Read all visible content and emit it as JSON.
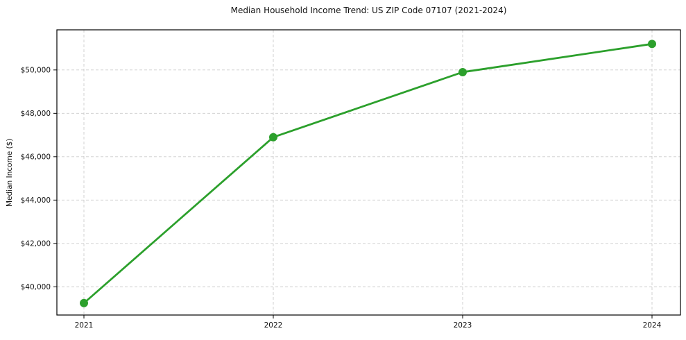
{
  "chart": {
    "title": "Median Household Income Trend: US ZIP Code 07107 (2021-2024)",
    "ylabel": "Median Income ($)"
  },
  "chart_data": {
    "type": "line",
    "title": "Median Household Income Trend: US ZIP Code 07107 (2021-2024)",
    "xlabel": "",
    "ylabel": "Median Income ($)",
    "x": [
      2021,
      2022,
      2023,
      2024
    ],
    "x_tick_labels": [
      "2021",
      "2022",
      "2023",
      "2024"
    ],
    "series": [
      {
        "name": "Median Household Income",
        "values": [
          39250,
          46900,
          49900,
          51200
        ]
      }
    ],
    "y_ticks": [
      40000,
      42000,
      44000,
      46000,
      48000,
      50000
    ],
    "y_tick_labels": [
      "$40,000",
      "$42,000",
      "$44,000",
      "$46,000",
      "$48,000",
      "$50,000"
    ],
    "ylim": [
      38700,
      51850
    ],
    "grid": true,
    "grid_style": "dashed",
    "legend": "none",
    "colors": {
      "line": "#2ca02c",
      "marker": "#2ca02c",
      "grid": "#cccccc",
      "spine": "#000000",
      "text": "#111111",
      "background": "#ffffff"
    }
  }
}
